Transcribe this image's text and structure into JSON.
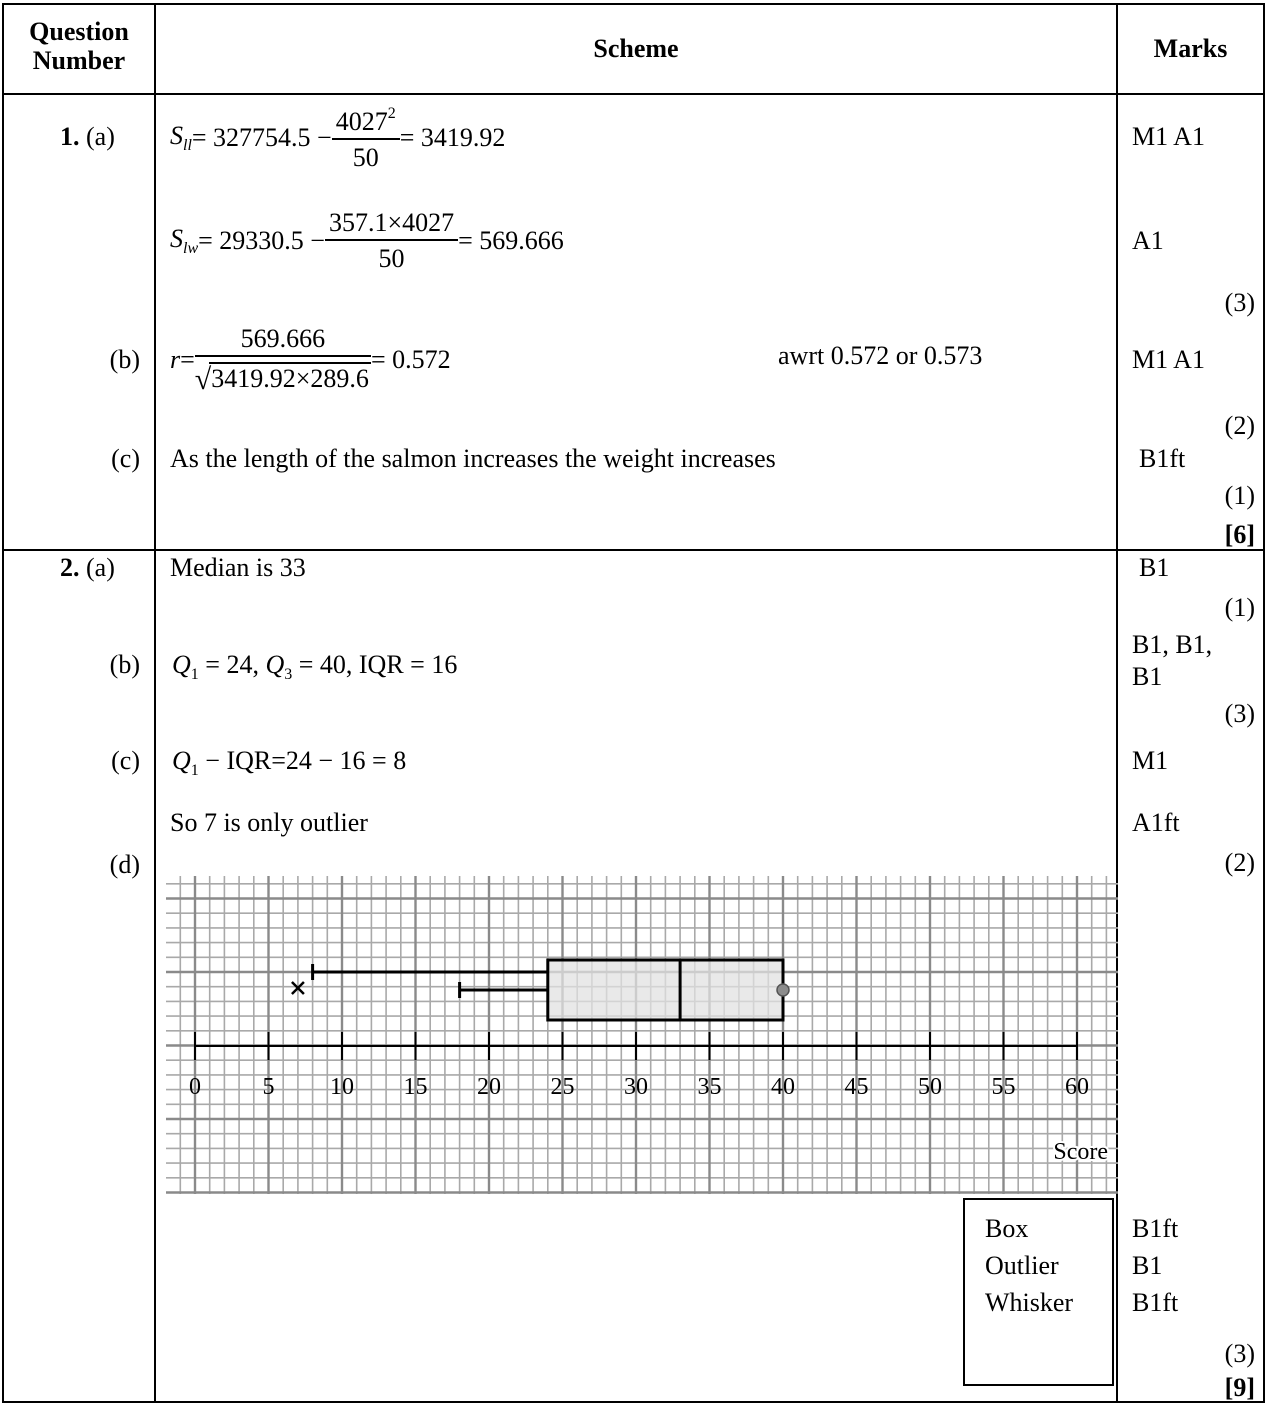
{
  "header": {
    "question_number": [
      "Question",
      "Number"
    ],
    "scheme": "Scheme",
    "marks": "Marks"
  },
  "q1": {
    "number": "1.",
    "a_label": "(a)",
    "a_line1": {
      "lhs_base": "S",
      "lhs_sub": "ll",
      "eq": " = 327754.5 − ",
      "num_base": "4027",
      "num_sup": "2",
      "den": "50",
      "result": " = 3419.92"
    },
    "a_line1_marks": "M1 A1",
    "a_line2": {
      "lhs_base": "S",
      "lhs_sub": "lw",
      "eq": " = 29330.5 − ",
      "num": "357.1×4027",
      "den": "50",
      "result": " = 569.666"
    },
    "a_line2_marks": "A1",
    "a_total": "(3)",
    "b_label": "(b)",
    "b_line": {
      "lhs": "r",
      "eq": " = ",
      "num": "569.666",
      "den": "3419.92×289.6",
      "result": " = 0.572"
    },
    "b_note": "awrt 0.572 or 0.573",
    "b_marks": "M1 A1",
    "b_total": "(2)",
    "c_label": "(c)",
    "c_text": "As the length of the salmon increases the weight increases",
    "c_marks": "B1ft",
    "c_total": "(1)",
    "grand_total": "[6]"
  },
  "q2": {
    "number": "2.",
    "a_label": "(a)",
    "a_text": "Median is 33",
    "a_marks": "B1",
    "a_total": "(1)",
    "b_label": "(b)",
    "b_q1": "Q",
    "b_q1_sub": "1",
    "b_q1_val": " = 24, ",
    "b_q3": "Q",
    "b_q3_sub": "3",
    "b_q3_val": " = 40, IQR = 16",
    "b_marks_line1": "B1, B1,",
    "b_marks_line2": "B1",
    "b_total": "(3)",
    "c_label": "(c)",
    "c_q": "Q",
    "c_q_sub": "1",
    "c_rest": " − IQR=24 − 16 = 8",
    "c_marks": "M1",
    "c_text2": "So 7 is only outlier",
    "c_marks2": "A1ft",
    "c_total": "(2)",
    "d_label": "(d)",
    "d_box_labels": [
      "Box",
      "Outlier",
      "Whisker"
    ],
    "d_marks": [
      "B1ft",
      "B1",
      "B1ft"
    ],
    "d_total": "(3)",
    "grand_total": "[9]"
  },
  "chart_data": {
    "type": "boxplot",
    "xlabel": "Score",
    "axis": {
      "min": 0,
      "max": 60,
      "ticks": [
        0,
        5,
        10,
        15,
        20,
        25,
        30,
        35,
        40,
        45,
        50,
        55,
        60
      ]
    },
    "grid": true,
    "box": {
      "q1": 24,
      "median": 33,
      "q3": 40
    },
    "whisker_upper_end": 8,
    "whisker_lower_end": 18,
    "outliers": [
      7
    ],
    "point_at_q3": 40
  }
}
